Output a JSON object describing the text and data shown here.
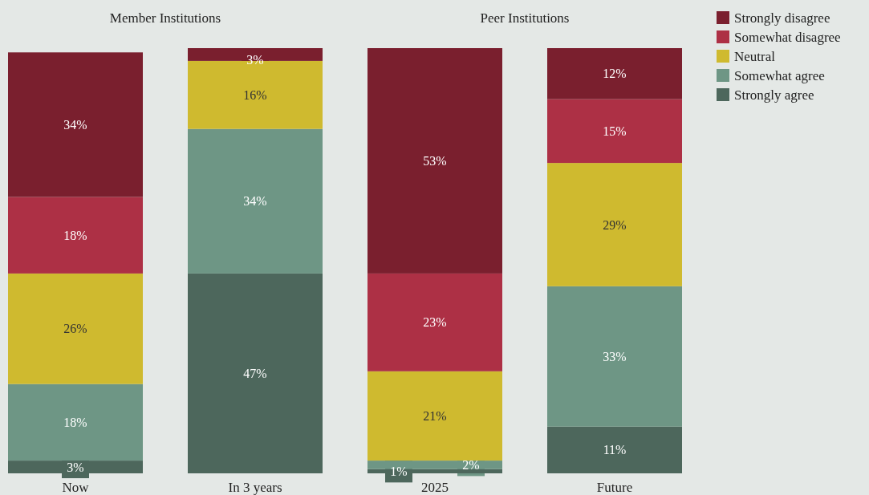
{
  "chart_data": [
    {
      "type": "bar",
      "title": "Member Institutions",
      "categories": [
        "Now",
        "In 3 years"
      ],
      "stacked": true,
      "series": [
        {
          "color": "#4d675c",
          "values": [
            3,
            47
          ],
          "value_labels": [
            "3%",
            "47%"
          ]
        },
        {
          "color": "#6e9685",
          "values": [
            18,
            34
          ],
          "value_labels": [
            "18%",
            "34%"
          ]
        },
        {
          "color": "#cfba2f",
          "values": [
            26,
            16
          ],
          "value_labels": [
            "26%",
            "16%"
          ]
        },
        {
          "color": "#ad3045",
          "values": [
            18,
            null
          ],
          "value_labels": [
            "18%",
            null
          ]
        },
        {
          "color": "#7a1f2e",
          "values": [
            34,
            3
          ],
          "value_labels": [
            "34%",
            "3%"
          ]
        }
      ],
      "legend": false
    },
    {
      "type": "bar",
      "title": "Peer Institutions",
      "categories": [
        "2025",
        "Future"
      ],
      "stacked": true,
      "series": [
        {
          "name": "Strongly agree",
          "color": "#4d675c",
          "values": [
            1,
            11
          ],
          "value_labels": [
            "1%",
            "11%"
          ]
        },
        {
          "name": "Somewhat agree",
          "color": "#6e9685",
          "values": [
            2,
            33
          ],
          "value_labels": [
            "2%",
            "33%"
          ]
        },
        {
          "name": "Neutral",
          "color": "#cfba2f",
          "values": [
            21,
            29
          ],
          "value_labels": [
            "21%",
            "29%"
          ]
        },
        {
          "name": "Somewhat disagree",
          "color": "#ad3045",
          "values": [
            23,
            15
          ],
          "value_labels": [
            "23%",
            "15%"
          ]
        },
        {
          "name": "Strongly disagree",
          "color": "#7a1f2e",
          "values": [
            53,
            12
          ],
          "value_labels": [
            "53%",
            "12%"
          ]
        }
      ],
      "legend": "right"
    }
  ]
}
